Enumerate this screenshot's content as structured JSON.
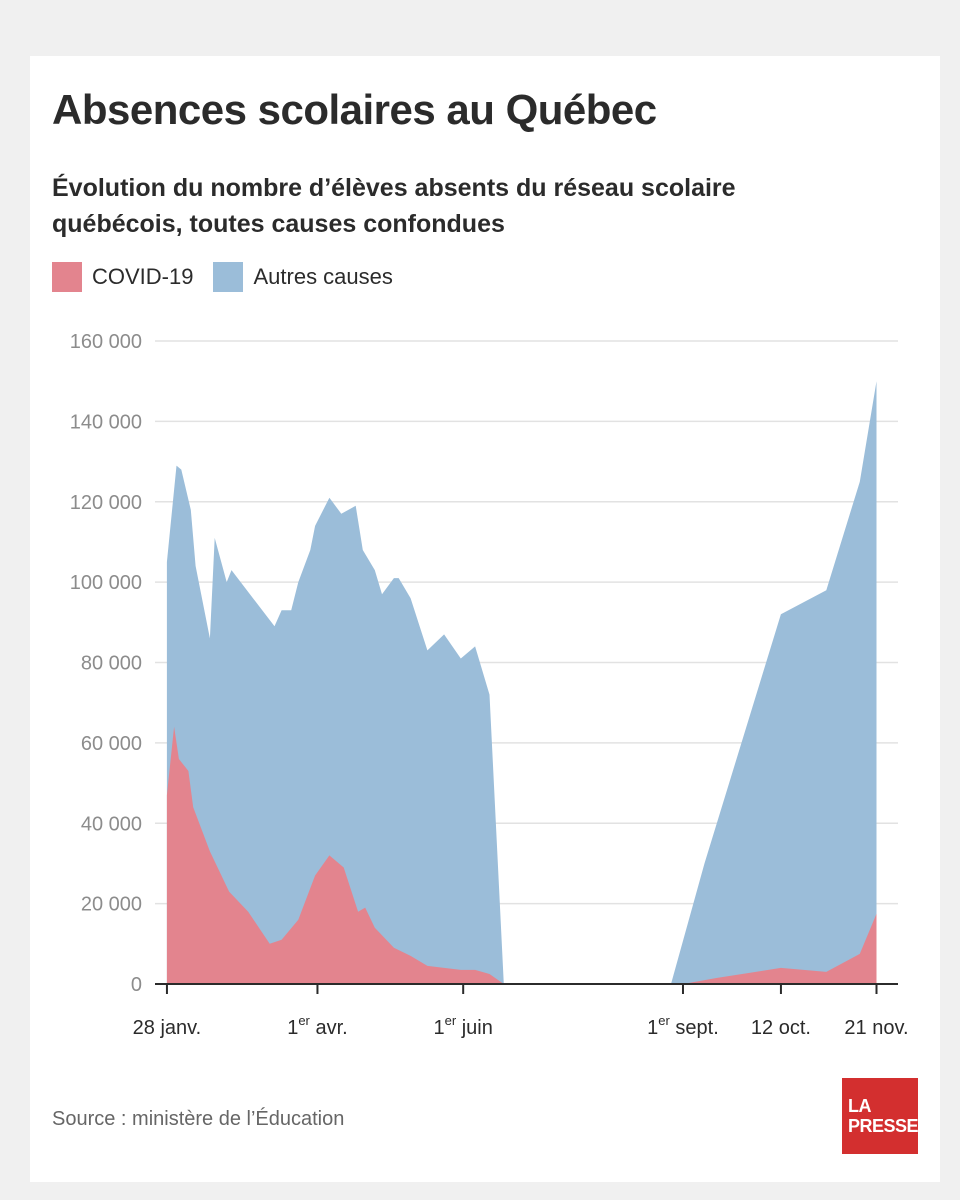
{
  "title": "Absences scolaires au Québec",
  "subtitle": "Évolution du nombre d’élèves absents du réseau scolaire québécois, toutes causes confondues",
  "legend": [
    {
      "label": "COVID-19",
      "color": "#e3848e"
    },
    {
      "label": "Autres causes",
      "color": "#9bbdd9"
    }
  ],
  "source": "Source : ministère de l’Éducation",
  "logo": {
    "line1": "LA",
    "line2": "PRESSE"
  },
  "chart_data": {
    "type": "area",
    "stacked": false,
    "grid": true,
    "ylim": [
      0,
      160000
    ],
    "yticks": [
      {
        "value": 0,
        "label": "0"
      },
      {
        "value": 20000,
        "label": "20 000"
      },
      {
        "value": 40000,
        "label": "40 000"
      },
      {
        "value": 60000,
        "label": "60 000"
      },
      {
        "value": 80000,
        "label": "80 000"
      },
      {
        "value": 100000,
        "label": "100 000"
      },
      {
        "value": 120000,
        "label": "120 000"
      },
      {
        "value": 140000,
        "label": "140 000"
      },
      {
        "value": 160000,
        "label": "160 000"
      }
    ],
    "xlim": [
      "2021-01-23",
      "2021-11-30"
    ],
    "xticks": [
      {
        "date": "2021-01-28",
        "label": "28 janv.",
        "sup": ""
      },
      {
        "date": "2021-04-01",
        "label": "1",
        "sup": "er",
        "rest": " avr."
      },
      {
        "date": "2021-06-01",
        "label": "1",
        "sup": "er",
        "rest": " juin"
      },
      {
        "date": "2021-09-01",
        "label": "1",
        "sup": "er",
        "rest": " sept."
      },
      {
        "date": "2021-10-12",
        "label": "12 oct.",
        "sup": ""
      },
      {
        "date": "2021-11-21",
        "label": "21 nov.",
        "sup": ""
      }
    ],
    "series": [
      {
        "name": "Autres causes",
        "color": "#9bbdd9",
        "points": [
          [
            "2021-01-28",
            0
          ],
          [
            "2021-01-28",
            105000
          ],
          [
            "2021-02-01",
            129000
          ],
          [
            "2021-02-03",
            128000
          ],
          [
            "2021-02-07",
            118000
          ],
          [
            "2021-02-09",
            104000
          ],
          [
            "2021-02-15",
            86000
          ],
          [
            "2021-02-17",
            111000
          ],
          [
            "2021-02-22",
            100000
          ],
          [
            "2021-02-24",
            103000
          ],
          [
            "2021-03-14",
            89000
          ],
          [
            "2021-03-17",
            93000
          ],
          [
            "2021-03-21",
            93000
          ],
          [
            "2021-03-24",
            100000
          ],
          [
            "2021-03-29",
            108000
          ],
          [
            "2021-03-31",
            114000
          ],
          [
            "2021-04-06",
            121000
          ],
          [
            "2021-04-11",
            117000
          ],
          [
            "2021-04-17",
            119000
          ],
          [
            "2021-04-20",
            108000
          ],
          [
            "2021-04-25",
            103000
          ],
          [
            "2021-04-28",
            97000
          ],
          [
            "2021-05-03",
            101000
          ],
          [
            "2021-05-05",
            101000
          ],
          [
            "2021-05-10",
            96000
          ],
          [
            "2021-05-17",
            83000
          ],
          [
            "2021-05-24",
            87000
          ],
          [
            "2021-05-31",
            81000
          ],
          [
            "2021-06-06",
            84000
          ],
          [
            "2021-06-12",
            72000
          ],
          [
            "2021-06-18",
            0
          ]
        ]
      },
      {
        "name": "Autres causes",
        "color": "#9bbdd9",
        "points": [
          [
            "2021-08-27",
            0
          ],
          [
            "2021-09-10",
            30000
          ],
          [
            "2021-10-12",
            92000
          ],
          [
            "2021-10-31",
            98000
          ],
          [
            "2021-11-14",
            125000
          ],
          [
            "2021-11-21",
            150000
          ],
          [
            "2021-11-21",
            0
          ]
        ]
      },
      {
        "name": "COVID-19",
        "color": "#e3848e",
        "points": [
          [
            "2021-01-28",
            0
          ],
          [
            "2021-01-28",
            47000
          ],
          [
            "2021-01-31",
            64000
          ],
          [
            "2021-02-02",
            56000
          ],
          [
            "2021-02-06",
            53000
          ],
          [
            "2021-02-08",
            44000
          ],
          [
            "2021-02-15",
            33000
          ],
          [
            "2021-02-23",
            23000
          ],
          [
            "2021-03-03",
            18000
          ],
          [
            "2021-03-12",
            10000
          ],
          [
            "2021-03-17",
            11000
          ],
          [
            "2021-03-24",
            16000
          ],
          [
            "2021-03-31",
            27000
          ],
          [
            "2021-04-06",
            32000
          ],
          [
            "2021-04-12",
            29000
          ],
          [
            "2021-04-18",
            18000
          ],
          [
            "2021-04-21",
            19000
          ],
          [
            "2021-04-25",
            14000
          ],
          [
            "2021-05-03",
            9000
          ],
          [
            "2021-05-10",
            7000
          ],
          [
            "2021-05-17",
            4500
          ],
          [
            "2021-05-24",
            4000
          ],
          [
            "2021-05-31",
            3500
          ],
          [
            "2021-06-06",
            3500
          ],
          [
            "2021-06-12",
            2500
          ],
          [
            "2021-06-18",
            0
          ]
        ]
      },
      {
        "name": "COVID-19",
        "color": "#e3848e",
        "points": [
          [
            "2021-09-01",
            0
          ],
          [
            "2021-09-15",
            1500
          ],
          [
            "2021-10-12",
            4000
          ],
          [
            "2021-10-31",
            3000
          ],
          [
            "2021-11-14",
            7500
          ],
          [
            "2021-11-21",
            17500
          ],
          [
            "2021-11-21",
            0
          ]
        ]
      }
    ]
  }
}
